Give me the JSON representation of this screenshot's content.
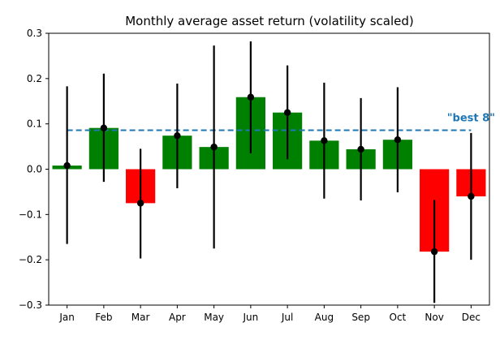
{
  "chart_data": {
    "type": "bar",
    "title": "Monthly average asset return (volatility scaled)",
    "xlabel": "",
    "ylabel": "",
    "categories": [
      "Jan",
      "Feb",
      "Mar",
      "Apr",
      "May",
      "Jun",
      "Jul",
      "Aug",
      "Sep",
      "Oct",
      "Nov",
      "Dec"
    ],
    "values": [
      0.008,
      0.091,
      -0.075,
      0.074,
      0.049,
      0.159,
      0.125,
      0.063,
      0.044,
      0.065,
      -0.182,
      -0.06
    ],
    "error_bars": {
      "lower": [
        -0.165,
        -0.028,
        -0.197,
        -0.042,
        -0.175,
        0.035,
        0.022,
        -0.065,
        -0.069,
        -0.051,
        -0.295,
        -0.2
      ],
      "upper": [
        0.183,
        0.211,
        0.045,
        0.189,
        0.273,
        0.282,
        0.229,
        0.191,
        0.157,
        0.181,
        -0.068,
        0.08
      ]
    },
    "ylim": [
      -0.3,
      0.3
    ],
    "yticks": [
      -0.3,
      -0.2,
      -0.1,
      0.0,
      0.1,
      0.2,
      0.3
    ],
    "ytick_labels": [
      "−0.3",
      "−0.2",
      "−0.1",
      "0.0",
      "0.1",
      "0.2",
      "0.3"
    ],
    "grid": false,
    "colors": {
      "positive": "#008000",
      "negative": "#ff0000",
      "errorbar": "#000000",
      "marker": "#000000",
      "reference_line": "#1f77b4"
    },
    "reference_line": {
      "label": "\"best 8\"",
      "value": 0.086,
      "style": "dashed"
    }
  }
}
